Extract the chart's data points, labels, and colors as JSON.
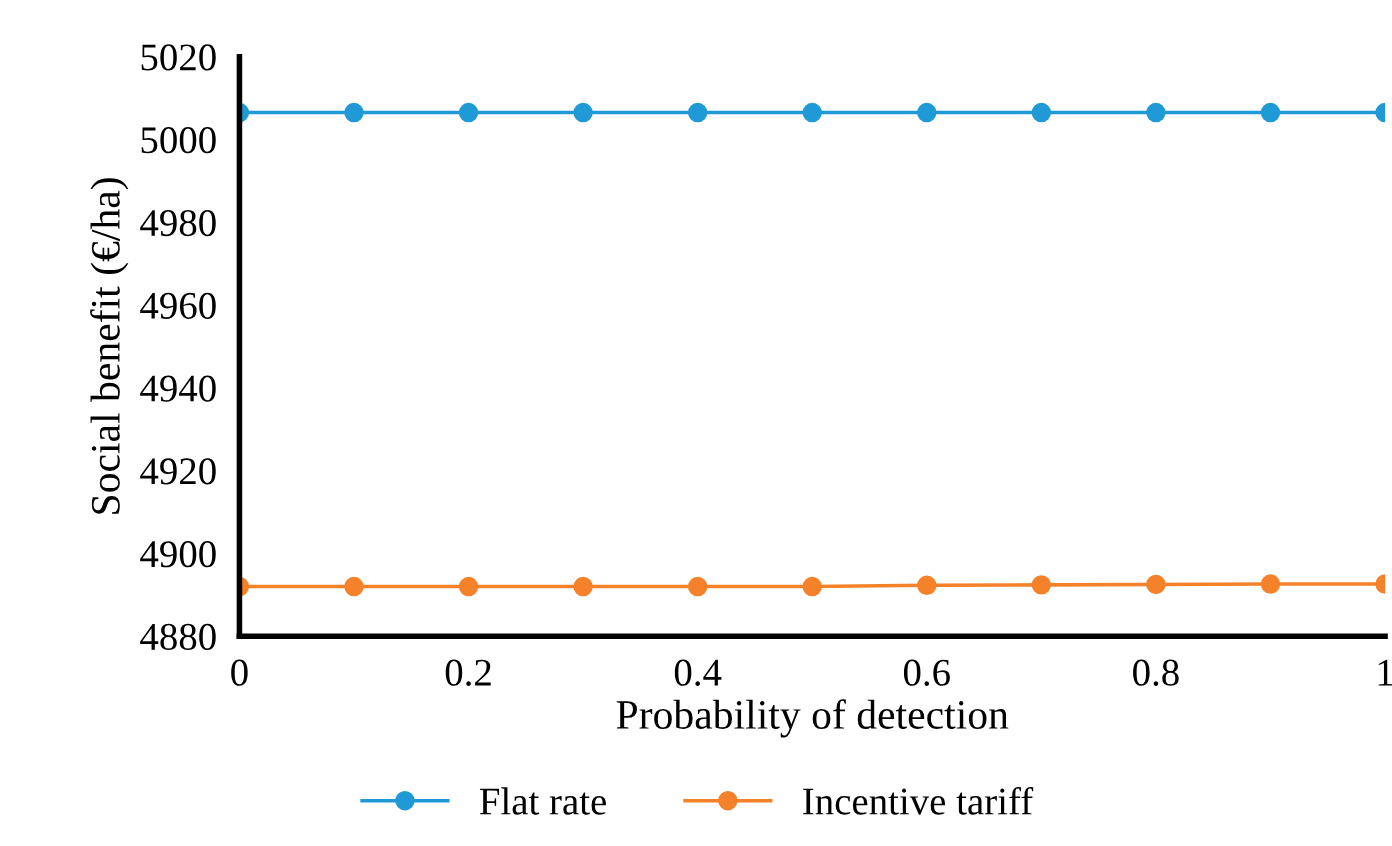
{
  "chart_data": {
    "type": "line",
    "xlabel": "Probability of detection",
    "ylabel": "Social benefit (€/ha)",
    "x": [
      0,
      0.1,
      0.2,
      0.3,
      0.4,
      0.5,
      0.6,
      0.7,
      0.8,
      0.9,
      1
    ],
    "series": [
      {
        "name": "Flat rate",
        "color": "#1f9ad6",
        "values": [
          5006.5,
          5006.5,
          5006.5,
          5006.5,
          5006.5,
          5006.5,
          5006.5,
          5006.5,
          5006.5,
          5006.5,
          5006.5
        ]
      },
      {
        "name": "Incentive tariff",
        "color": "#f5822a",
        "values": [
          4892,
          4892,
          4892,
          4892,
          4892,
          4892,
          4892.3,
          4892.4,
          4892.5,
          4892.6,
          4892.6
        ]
      }
    ],
    "xlim": [
      0,
      1
    ],
    "xticks": [
      0,
      0.2,
      0.4,
      0.6,
      0.8,
      1
    ],
    "ylim": [
      4880,
      5020
    ],
    "yticks": [
      4880,
      4900,
      4920,
      4940,
      4960,
      4980,
      5000,
      5020
    ],
    "marker": "circle",
    "line_style": "solid",
    "grid": false,
    "legend": "bottom"
  }
}
